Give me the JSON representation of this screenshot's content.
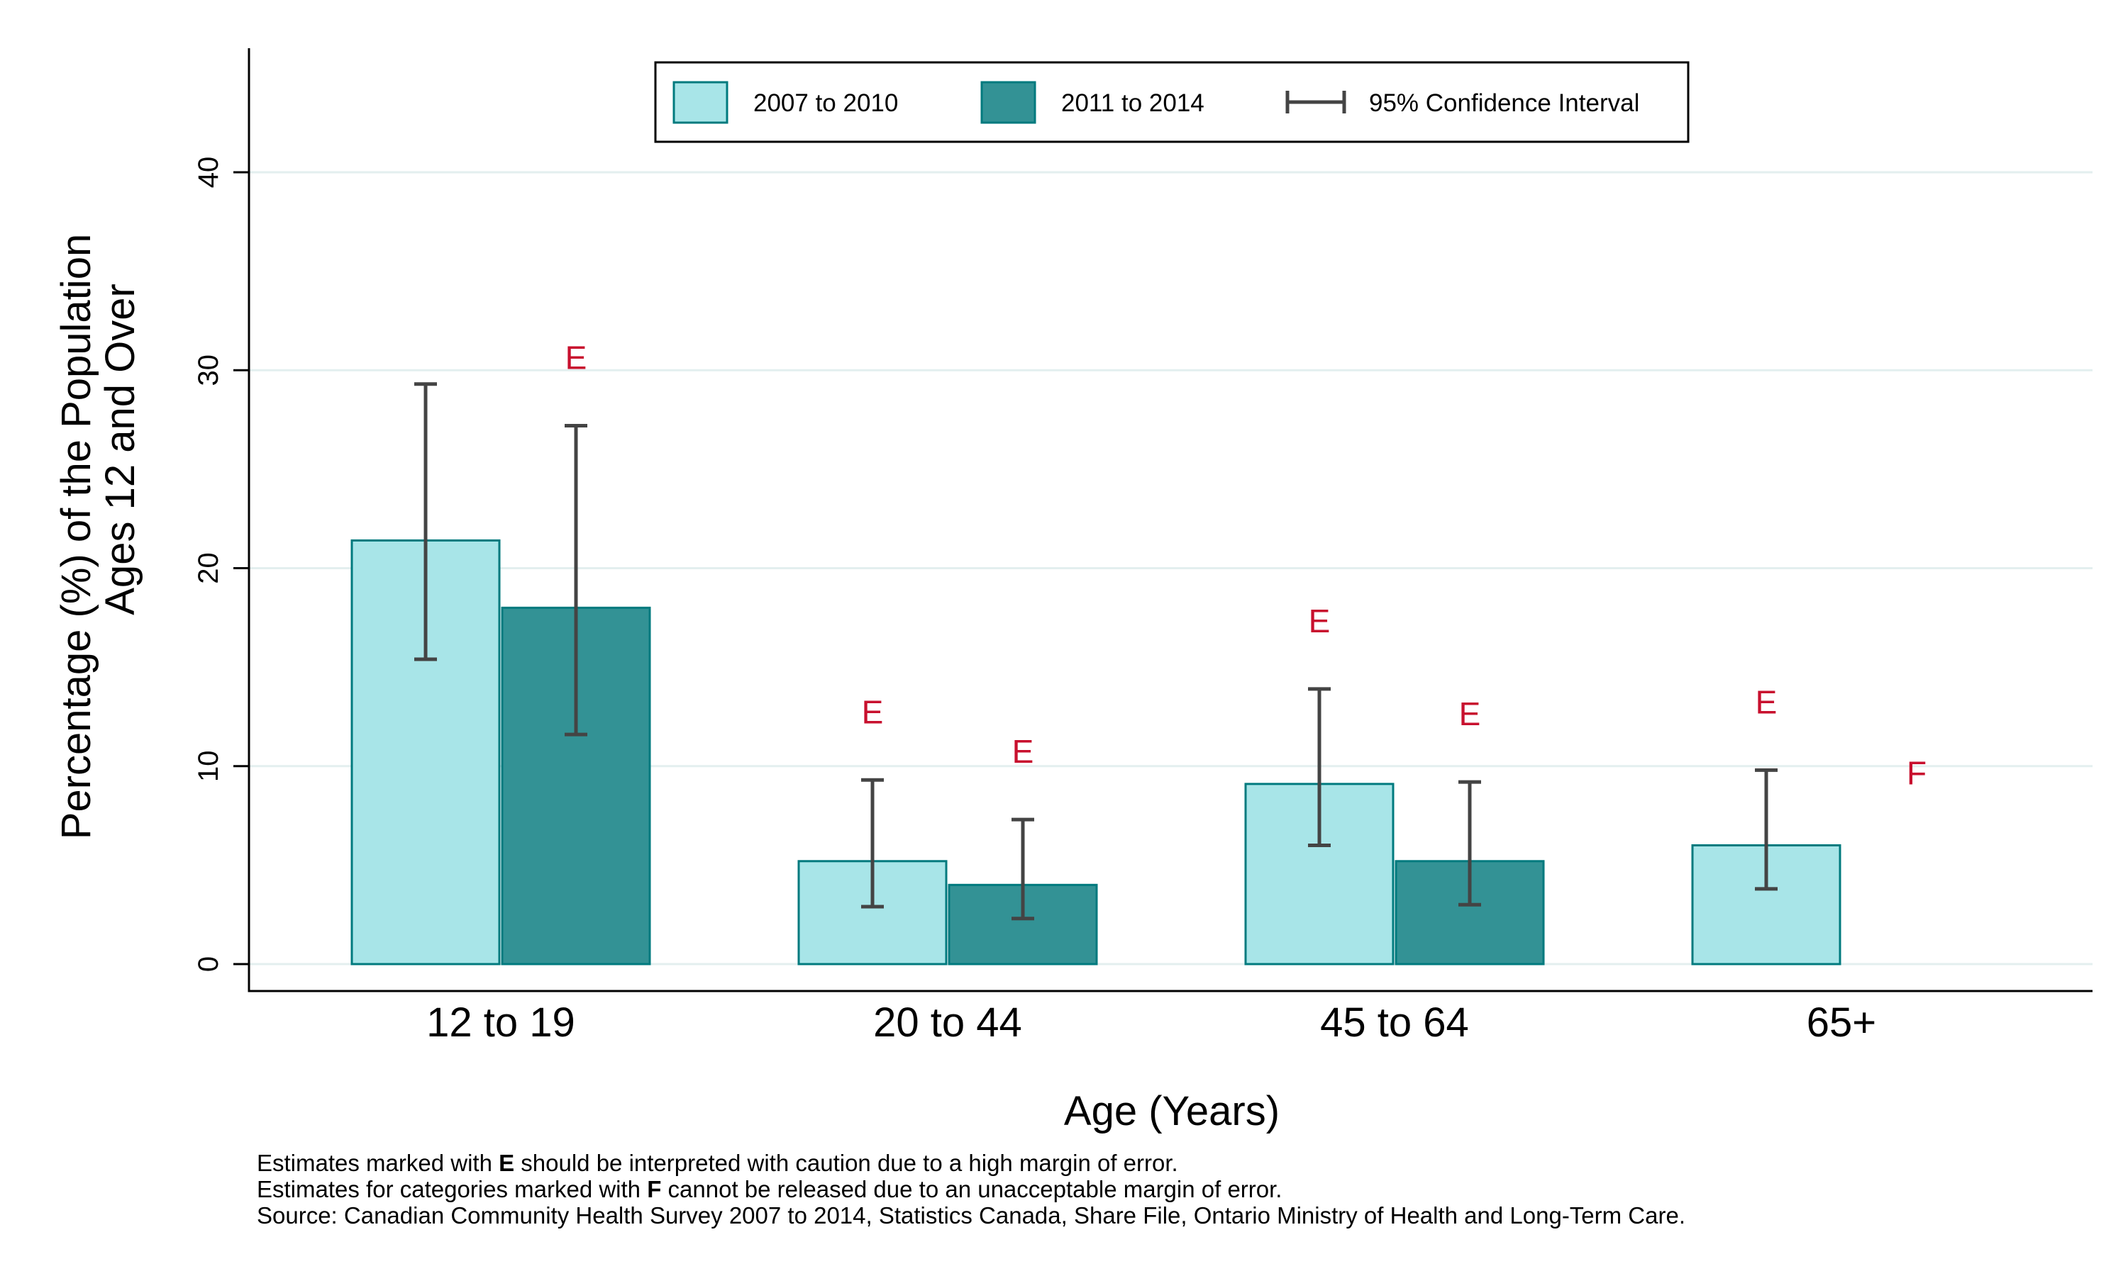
{
  "chart_data": {
    "type": "bar",
    "categories": [
      "12 to 19",
      "20 to 44",
      "45 to 64",
      "65+"
    ],
    "series": [
      {
        "name": "2007 to 2010",
        "color": "#a8e5e8",
        "values": [
          21.4,
          5.2,
          9.1,
          6.0
        ],
        "ci_low": [
          15.4,
          2.9,
          6.0,
          3.8
        ],
        "ci_high": [
          29.3,
          9.3,
          13.9,
          9.8
        ],
        "flags": [
          "",
          "E",
          "E",
          "E"
        ]
      },
      {
        "name": "2011 to 2014",
        "color": "#339295",
        "values": [
          18.0,
          4.0,
          5.2,
          null
        ],
        "ci_low": [
          11.6,
          2.3,
          3.0,
          null
        ],
        "ci_high": [
          27.2,
          7.3,
          9.2,
          null
        ],
        "flags": [
          "E",
          "E",
          "E",
          "F"
        ]
      }
    ],
    "legend": {
      "position": "top-center",
      "items": [
        "2007 to 2010",
        "2011 to 2014",
        "95% Confidence Interval"
      ]
    },
    "xlabel": "Age (Years)",
    "ylabel_lines": [
      "Percentage (%) of the Population",
      "Ages 12 and Over"
    ],
    "yticks": [
      "0",
      "10",
      "20",
      "30",
      "40"
    ],
    "ylim": [
      0,
      46
    ],
    "grid": true,
    "flag_color": "#c8102e",
    "edge_color": "#007a7e",
    "ci_color": "#444444"
  },
  "notes": {
    "e_note": {
      "pre": "Estimates marked with ",
      "flag": "E",
      "post": " should be interpreted with caution due to a high margin of error."
    },
    "f_note": {
      "pre": "Estimates for categories marked with ",
      "flag": "F",
      "post": " cannot be released due to an unacceptable margin of error."
    },
    "source": "Source: Canadian Community Health Survey 2007 to 2014, Statistics Canada, Share File, Ontario Ministry of Health and Long-Term Care."
  }
}
